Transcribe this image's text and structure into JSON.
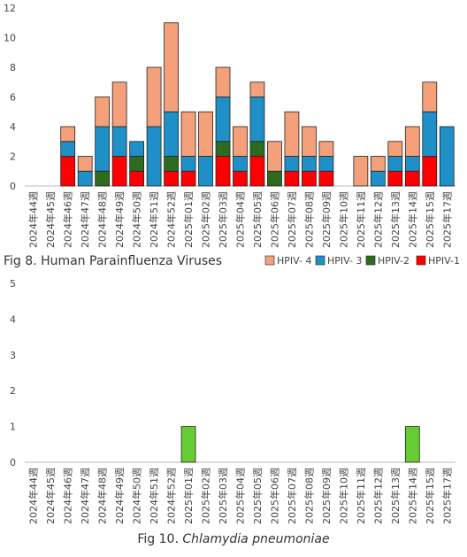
{
  "chart_data": [
    {
      "type": "stacked-bar",
      "title": "Fig 8. Human Parainfluenza Viruses",
      "categories": [
        "2024年44週",
        "2024年45週",
        "2024年46週",
        "2024年47週",
        "2024年48週",
        "2024年49週",
        "2024年50週",
        "2024年51週",
        "2024年52週",
        "2025年01週",
        "2025年02週",
        "2025年03週",
        "2025年04週",
        "2025年05週",
        "2025年06週",
        "2025年07週",
        "2025年08週",
        "2025年09週",
        "2025年10週",
        "2025年11週",
        "2025年12週",
        "2025年13週",
        "2025年14週",
        "2025年15週",
        "2025年17週"
      ],
      "series": [
        {
          "name": "HPIV-1",
          "color": "#ff0000",
          "values": [
            0,
            0,
            2,
            0,
            0,
            2,
            1,
            0,
            1,
            1,
            0,
            2,
            1,
            2,
            0,
            1,
            1,
            1,
            0,
            0,
            0,
            1,
            1,
            2,
            0
          ]
        },
        {
          "name": "HPIV-2",
          "color": "#2e6b1f",
          "values": [
            0,
            0,
            0,
            0,
            1,
            0,
            1,
            0,
            1,
            0,
            0,
            1,
            0,
            1,
            1,
            0,
            0,
            0,
            0,
            0,
            0,
            0,
            0,
            0,
            0
          ]
        },
        {
          "name": "HPIV- 3",
          "color": "#1f8fc8",
          "values": [
            0,
            0,
            1,
            1,
            3,
            2,
            1,
            4,
            3,
            1,
            2,
            3,
            1,
            3,
            0,
            1,
            1,
            1,
            0,
            0,
            1,
            1,
            1,
            3,
            4
          ]
        },
        {
          "name": "HPIV- 4",
          "color": "#f4a07a",
          "values": [
            0,
            0,
            1,
            1,
            2,
            3,
            0,
            4,
            6,
            3,
            3,
            2,
            2,
            1,
            2,
            3,
            2,
            1,
            0,
            2,
            1,
            1,
            2,
            2,
            0
          ]
        }
      ],
      "ylim": [
        0,
        12
      ],
      "yticks": [
        0,
        2,
        4,
        6,
        8,
        10,
        12
      ]
    },
    {
      "type": "bar",
      "title": "Fig 10.",
      "title_italic": "Chlamydia pneumoniae",
      "categories": [
        "2024年44週",
        "2024年45週",
        "2024年46週",
        "2024年47週",
        "2024年48週",
        "2024年49週",
        "2024年50週",
        "2024年51週",
        "2024年52週",
        "2025年01週",
        "2025年02週",
        "2025年03週",
        "2025年04週",
        "2025年05週",
        "2025年06週",
        "2025年07週",
        "2025年08週",
        "2025年09週",
        "2025年10週",
        "2025年11週",
        "2025年12週",
        "2025年13週",
        "2025年14週",
        "2025年15週",
        "2025年17週"
      ],
      "values": [
        0,
        0,
        0,
        0,
        0,
        0,
        0,
        0,
        0,
        1,
        0,
        0,
        0,
        0,
        0,
        0,
        0,
        0,
        0,
        0,
        0,
        0,
        1,
        0,
        0
      ],
      "color": "#66cc33",
      "ylim": [
        0,
        5
      ],
      "yticks": [
        0,
        1,
        2,
        3,
        4,
        5
      ]
    }
  ]
}
